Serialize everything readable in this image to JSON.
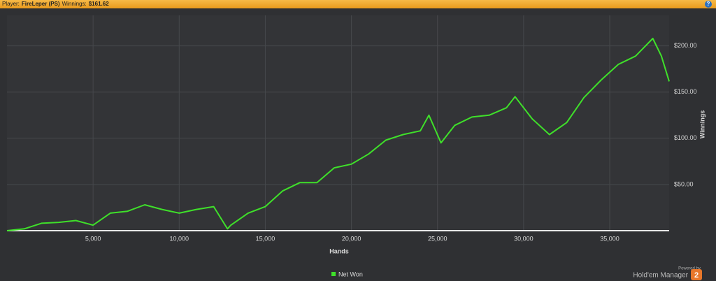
{
  "header": {
    "player_label": "Player:",
    "player": "FireLeper (PS)",
    "winnings_label": "Winnings:",
    "winnings": "$161.62",
    "help": "?"
  },
  "branding": {
    "powered": "Powered by",
    "product": "Hold'em Manager",
    "logo": "2"
  },
  "chart_data": {
    "type": "line",
    "x_label": "Hands",
    "y_label": "Winnings",
    "x": [
      0,
      1000,
      2000,
      3000,
      4000,
      5000,
      6000,
      7000,
      8000,
      9000,
      10000,
      11000,
      12000,
      12800,
      13000,
      14000,
      15000,
      16000,
      17000,
      18000,
      19000,
      20000,
      21000,
      22000,
      23000,
      24000,
      24500,
      25200,
      26000,
      27000,
      28000,
      29000,
      29500,
      30500,
      31500,
      32500,
      33500,
      34500,
      35500,
      36500,
      37500,
      38000,
      38450
    ],
    "series": [
      {
        "name": "Net Won",
        "color": "#3fe02a",
        "values": [
          0,
          2,
          8,
          9,
          11,
          6,
          19,
          21,
          28,
          23,
          19,
          23,
          26,
          2,
          6,
          19,
          26,
          43,
          52,
          52,
          68,
          72,
          83,
          98,
          104,
          108,
          125,
          95,
          114,
          123,
          125,
          133,
          145,
          121,
          104,
          117,
          144,
          163,
          180,
          189,
          208,
          189,
          161.62
        ]
      }
    ],
    "xlim": [
      0,
      38450
    ],
    "ylim": [
      0,
      233
    ],
    "xticks": [
      {
        "value": 5000,
        "label": "5,000"
      },
      {
        "value": 10000,
        "label": "10,000"
      },
      {
        "value": 15000,
        "label": "15,000"
      },
      {
        "value": 20000,
        "label": "20,000"
      },
      {
        "value": 25000,
        "label": "25,000"
      },
      {
        "value": 30000,
        "label": "30,000"
      },
      {
        "value": 35000,
        "label": "35,000"
      }
    ],
    "yticks": [
      {
        "value": 50,
        "label": "$50.00"
      },
      {
        "value": 100,
        "label": "$100.00"
      },
      {
        "value": 150,
        "label": "$150.00"
      },
      {
        "value": 200,
        "label": "$200.00"
      }
    ],
    "grid": true
  }
}
